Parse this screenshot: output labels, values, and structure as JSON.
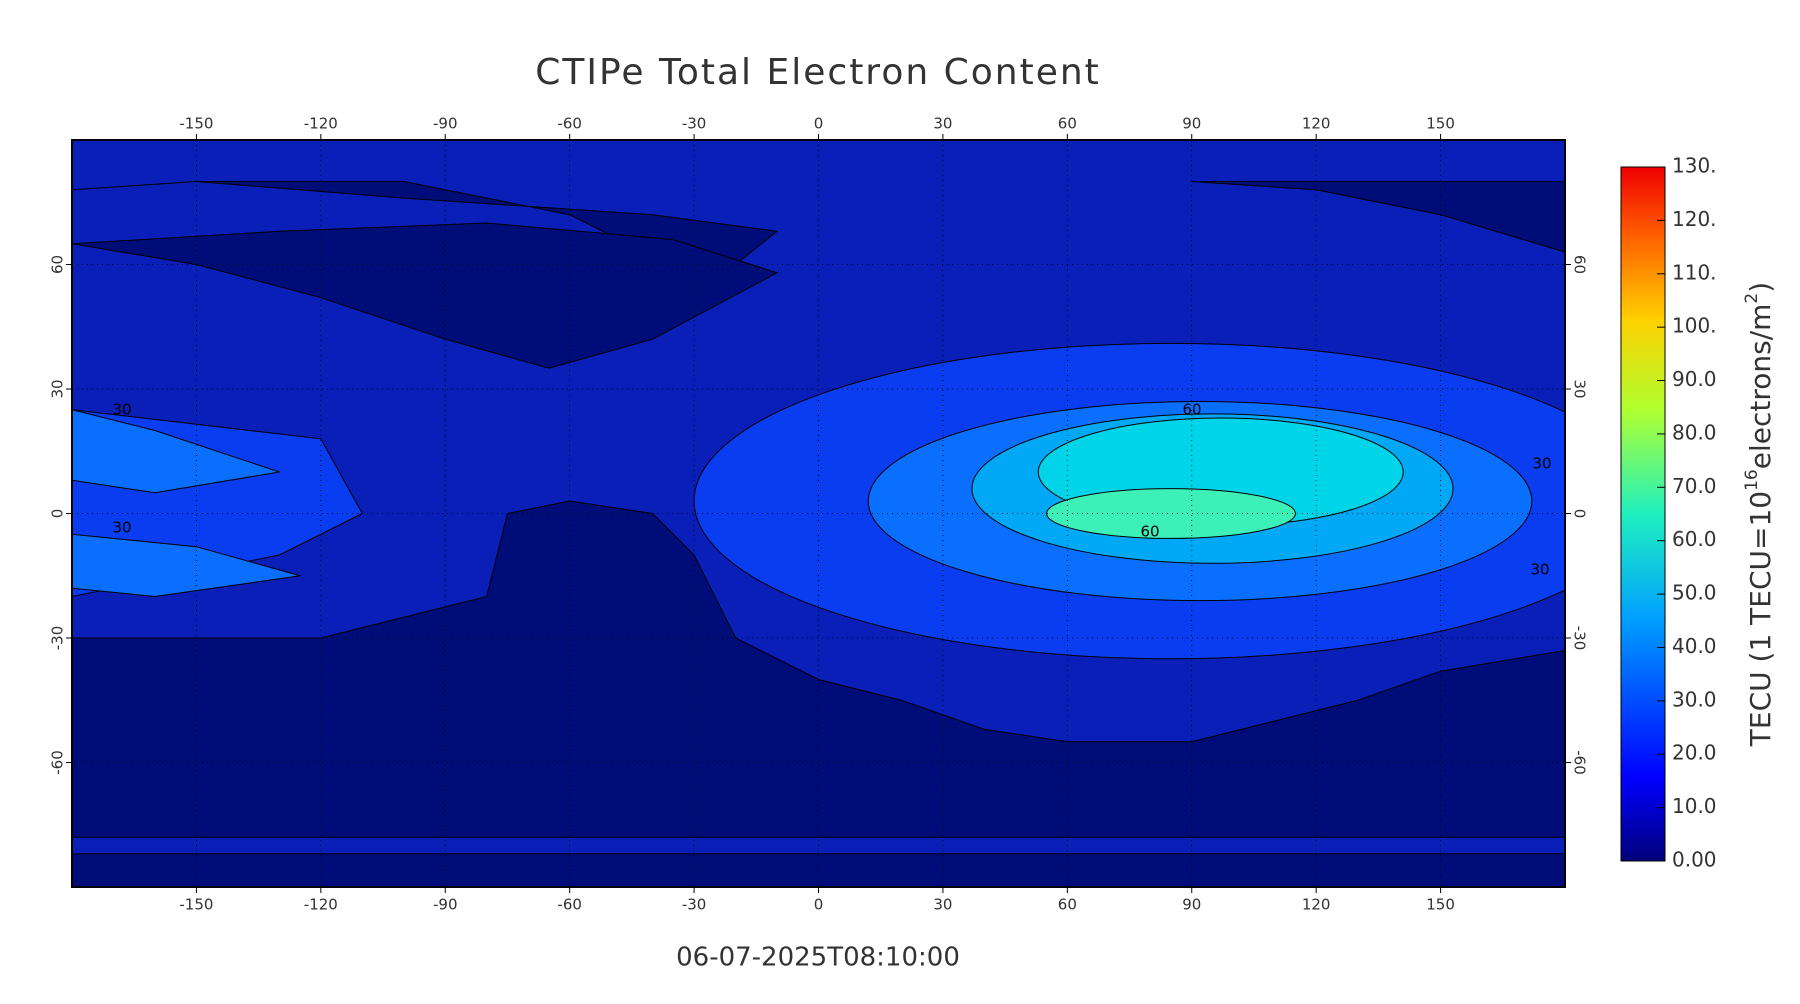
{
  "title": "CTIPe Total Electron Content",
  "timestamp": "06-07-2025T08:10:00",
  "map": {
    "xlim": [
      -180,
      180
    ],
    "ylim": [
      -90,
      90
    ],
    "xticks": [
      -150,
      -120,
      -90,
      -60,
      -30,
      0,
      30,
      60,
      90,
      120,
      150
    ],
    "yticks": [
      -60,
      -30,
      0,
      30,
      60
    ],
    "contour_labels": [
      60,
      60,
      30,
      30,
      30,
      30
    ]
  },
  "colorbar": {
    "lim": [
      0,
      130
    ],
    "ticks": [
      {
        "value": 0,
        "label": "0.00"
      },
      {
        "value": 10,
        "label": "10.0"
      },
      {
        "value": 20,
        "label": "20.0"
      },
      {
        "value": 30,
        "label": "30.0"
      },
      {
        "value": 40,
        "label": "40.0"
      },
      {
        "value": 50,
        "label": "50.0"
      },
      {
        "value": 60,
        "label": "60.0"
      },
      {
        "value": 70,
        "label": "70.0"
      },
      {
        "value": 80,
        "label": "80.0"
      },
      {
        "value": 90,
        "label": "90.0"
      },
      {
        "value": 100,
        "label": "100."
      },
      {
        "value": 110,
        "label": "110."
      },
      {
        "value": 120,
        "label": "120."
      },
      {
        "value": 130,
        "label": "130."
      }
    ],
    "label": {
      "prefix": "TECU (1 TECU=10",
      "exponent": "16",
      "middle": "electrons/m",
      "exponent2": "2",
      "suffix": ")"
    }
  }
}
